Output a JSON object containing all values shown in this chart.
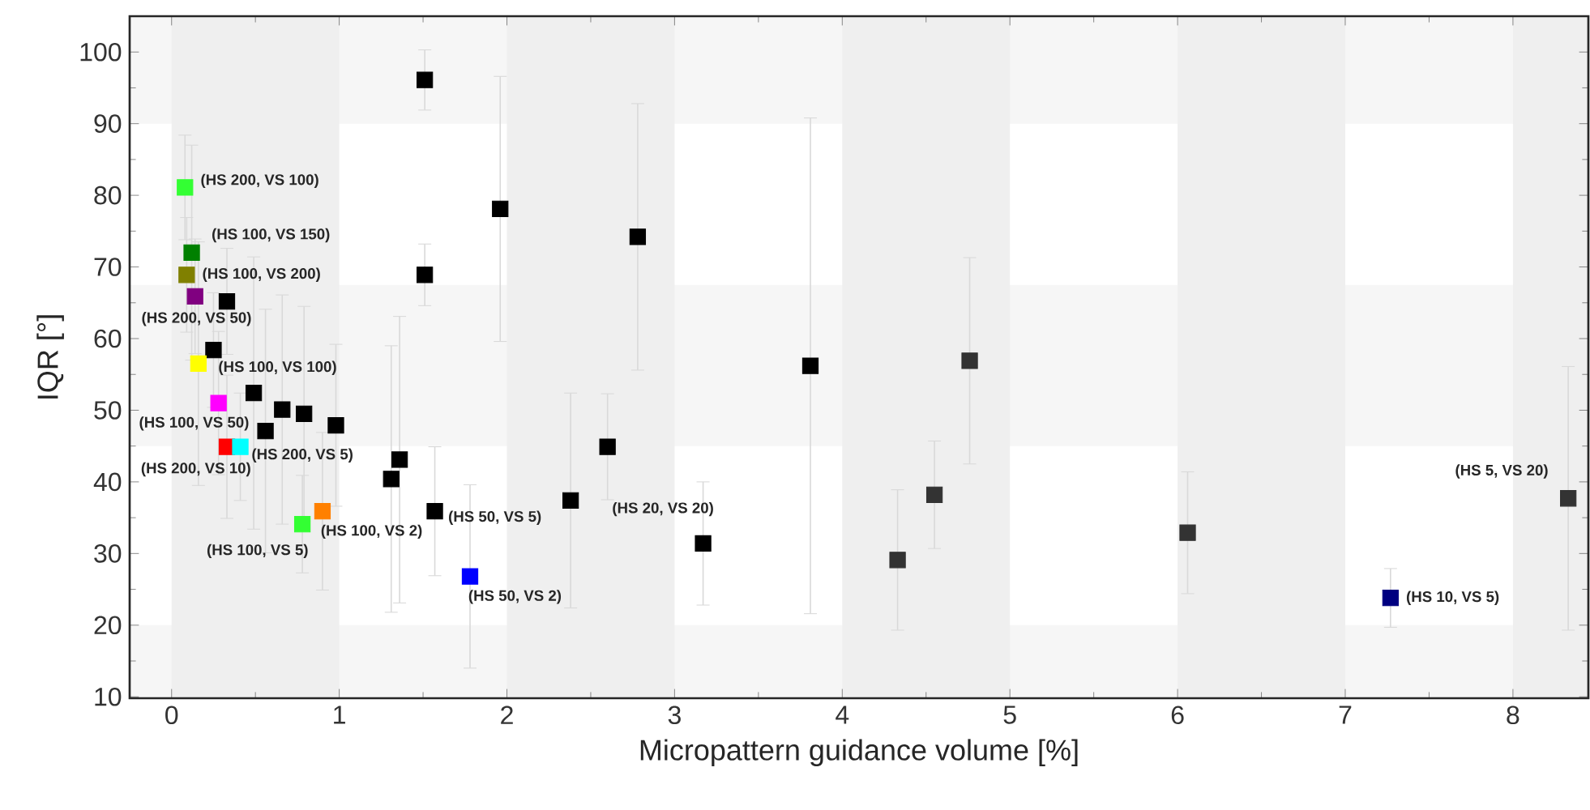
{
  "chart_data": {
    "type": "scatter",
    "xlabel": "Micropattern guidance volume [%]",
    "ylabel": "IQR [°]",
    "xlim": [
      -0.25,
      8.45
    ],
    "ylim": [
      9.8,
      105
    ],
    "xticks": [
      0,
      1,
      2,
      3,
      4,
      5,
      6,
      7,
      8
    ],
    "yticks": [
      10,
      20,
      30,
      40,
      50,
      60,
      70,
      80,
      90,
      100
    ],
    "marker": "square",
    "grid": false,
    "x": [
      0.08,
      0.12,
      0.09,
      0.14,
      0.33,
      0.25,
      0.16,
      0.49,
      0.28,
      0.66,
      0.79,
      0.98,
      0.56,
      0.33,
      0.41,
      1.36,
      1.31,
      0.9,
      0.78,
      1.57,
      1.78,
      1.51,
      1.51,
      1.96,
      2.38,
      2.6,
      2.78,
      3.17,
      3.81,
      4.33,
      4.55,
      4.76,
      6.06,
      7.27,
      8.33
    ],
    "values": [
      81.1,
      72.0,
      68.9,
      65.9,
      65.2,
      58.4,
      56.5,
      52.4,
      51.0,
      50.1,
      49.5,
      47.9,
      47.1,
      44.9,
      44.9,
      43.1,
      40.4,
      35.9,
      34.1,
      35.9,
      26.8,
      96.1,
      68.9,
      78.1,
      37.4,
      44.9,
      74.2,
      31.4,
      56.2,
      29.1,
      38.2,
      56.9,
      32.9,
      23.8,
      37.7
    ],
    "errors": [
      7.3,
      15,
      8,
      8,
      7.4,
      8,
      17,
      19,
      10,
      16,
      15,
      11.3,
      17,
      10,
      7.5,
      20,
      18.6,
      11,
      6.8,
      9,
      12.8,
      4.2,
      4.3,
      18.5,
      15,
      7.4,
      18.6,
      8.6,
      34.6,
      9.8,
      7.5,
      14.4,
      8.5,
      4.1,
      18.4
    ],
    "colors": [
      "#33ff33",
      "#008000",
      "#808000",
      "#800080",
      "#000000",
      "#000000",
      "#ffff00",
      "#000000",
      "#ff00ff",
      "#000000",
      "#000000",
      "#000000",
      "#000000",
      "#ff0000",
      "#00ffff",
      "#000000",
      "#000000",
      "#ff8000",
      "#33ff33",
      "#000000",
      "#0000ff",
      "#000000",
      "#000000",
      "#000000",
      "#000000",
      "#000000",
      "#000000",
      "#000000",
      "#000000",
      "#333333",
      "#333333",
      "#333333",
      "#333333",
      "#000080",
      "#333333"
    ],
    "bands": [
      {
        "axis": "y",
        "from": 9.8,
        "to": 20,
        "color": "#f6f6f6"
      },
      {
        "axis": "y",
        "from": 45,
        "to": 67.5,
        "color": "#f6f6f6"
      },
      {
        "axis": "y",
        "from": 90,
        "to": 105,
        "color": "#f6f6f6"
      },
      {
        "axis": "x",
        "from": 0,
        "to": 1,
        "color": "#efefef"
      },
      {
        "axis": "x",
        "from": 2,
        "to": 3,
        "color": "#efefef"
      },
      {
        "axis": "x",
        "from": 4,
        "to": 5,
        "color": "#efefef"
      },
      {
        "axis": "x",
        "from": 6,
        "to": 7,
        "color": "#efefef"
      },
      {
        "axis": "x",
        "from": 8,
        "to": 8.45,
        "color": "#efefef"
      }
    ],
    "annotations": [
      {
        "text": "(HS 200, VS 100)",
        "x": 0.08,
        "y": 81.1
      },
      {
        "text": "(HS 100, VS 150)",
        "x": 0.12,
        "y": 72.0
      },
      {
        "text": "(HS 100, VS 200)",
        "x": 0.09,
        "y": 68.9
      },
      {
        "text": "(HS 200, VS 50)",
        "x": 0.14,
        "y": 65.9
      },
      {
        "text": "(HS 100, VS 100)",
        "x": 0.16,
        "y": 56.5
      },
      {
        "text": "(HS 100, VS 50)",
        "x": 0.28,
        "y": 51.0
      },
      {
        "text": "(HS 200, VS 5)",
        "x": 0.41,
        "y": 44.9
      },
      {
        "text": "(HS 200, VS 10)",
        "x": 0.33,
        "y": 44.9
      },
      {
        "text": "(HS 100, VS 5)",
        "x": 0.78,
        "y": 34.1
      },
      {
        "text": "(HS 100, VS 2)",
        "x": 0.9,
        "y": 35.9
      },
      {
        "text": "(HS 50, VS 5)",
        "x": 1.57,
        "y": 35.9
      },
      {
        "text": "(HS 50, VS 2)",
        "x": 1.78,
        "y": 26.8
      },
      {
        "text": "(HS 20, VS 20)",
        "x": 2.38,
        "y": 37.4
      },
      {
        "text": "(HS 10, VS 5)",
        "x": 7.27,
        "y": 23.8
      },
      {
        "text": "(HS 5, VS 20)",
        "x": 8.33,
        "y": 37.7
      }
    ]
  }
}
